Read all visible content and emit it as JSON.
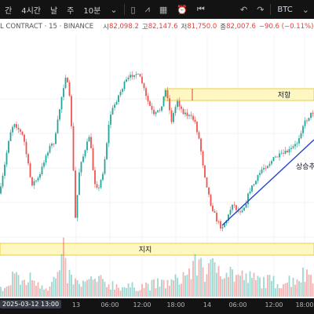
{
  "toolbar": {
    "interval_label": "4시간",
    "intervals": [
      "날",
      "주",
      "10분"
    ],
    "symbol": "BTC",
    "icons": [
      "chevron-down-icon",
      "candles-icon",
      "indicators-icon",
      "layout-icon",
      "alert-icon",
      "replay-icon",
      "undo-icon",
      "redo-icon"
    ]
  },
  "legend": {
    "symbol_text": "L CONTRACT · 15 · BINANCE",
    "open_label": "시",
    "open_value": "82,098.2",
    "high_label": "고",
    "high_value": "82,147.6",
    "low_label": "저",
    "low_value": "81,750.0",
    "close_label": "종",
    "close_value": "82,007.6",
    "change": "−90.6 (−0.11%)"
  },
  "footer": {
    "cursor_label": "2025-03-12  13:00",
    "time_ticks": [
      "13",
      "06:00",
      "12:00",
      "18:00",
      "14",
      "06:00",
      "12:00",
      "18:00"
    ]
  },
  "chart_data": {
    "type": "candlestick",
    "annotations": [
      {
        "kind": "zone",
        "label": "저항"
      },
      {
        "kind": "zone",
        "label": "지지"
      },
      {
        "kind": "trendline",
        "label": "상승추"
      }
    ],
    "price_path": [
      [
        0,
        0.78
      ],
      [
        6,
        0.6
      ],
      [
        12,
        0.4
      ],
      [
        18,
        0.32
      ],
      [
        24,
        0.37
      ],
      [
        30,
        0.42
      ],
      [
        40,
        0.72
      ],
      [
        50,
        0.68
      ],
      [
        56,
        0.57
      ],
      [
        62,
        0.49
      ],
      [
        70,
        0.44
      ],
      [
        74,
        0.3
      ],
      [
        78,
        0.17
      ],
      [
        84,
        0.01
      ],
      [
        90,
        0.22
      ],
      [
        96,
        0.94
      ],
      [
        102,
        0.58
      ],
      [
        108,
        0.52
      ],
      [
        114,
        0.4
      ],
      [
        120,
        0.7
      ],
      [
        126,
        0.75
      ],
      [
        132,
        0.62
      ],
      [
        140,
        0.28
      ],
      [
        150,
        0.16
      ],
      [
        160,
        0.06
      ],
      [
        172,
        0.0
      ],
      [
        180,
        0.05
      ],
      [
        186,
        0.16
      ],
      [
        196,
        0.28
      ],
      [
        204,
        0.24
      ],
      [
        212,
        0.1
      ],
      [
        218,
        0.32
      ],
      [
        226,
        0.18
      ],
      [
        232,
        0.25
      ],
      [
        240,
        0.28
      ],
      [
        248,
        0.31
      ],
      [
        254,
        0.44
      ],
      [
        260,
        0.64
      ],
      [
        268,
        0.84
      ],
      [
        276,
        0.95
      ],
      [
        282,
        1.0
      ],
      [
        290,
        0.94
      ],
      [
        296,
        0.84
      ],
      [
        304,
        0.9
      ],
      [
        312,
        0.86
      ],
      [
        318,
        0.76
      ],
      [
        326,
        0.7
      ],
      [
        334,
        0.62
      ],
      [
        342,
        0.59
      ],
      [
        350,
        0.55
      ],
      [
        360,
        0.53
      ],
      [
        370,
        0.5
      ],
      [
        378,
        0.46
      ],
      [
        386,
        0.34
      ],
      [
        394,
        0.28
      ],
      [
        400,
        0.25
      ]
    ],
    "volume_profile": [
      [
        0,
        0.15
      ],
      [
        14,
        0.25
      ],
      [
        18,
        0.65
      ],
      [
        24,
        0.3
      ],
      [
        42,
        0.4
      ],
      [
        50,
        0.3
      ],
      [
        62,
        0.2
      ],
      [
        78,
        0.55
      ],
      [
        80,
        1.0
      ],
      [
        84,
        0.5
      ],
      [
        100,
        0.25
      ],
      [
        120,
        0.35
      ],
      [
        160,
        0.2
      ],
      [
        220,
        0.3
      ],
      [
        248,
        0.6
      ],
      [
        255,
        0.85
      ],
      [
        262,
        0.5
      ],
      [
        280,
        0.7
      ],
      [
        300,
        0.45
      ],
      [
        330,
        0.35
      ],
      [
        360,
        0.3
      ],
      [
        385,
        0.45
      ],
      [
        400,
        0.55
      ]
    ]
  }
}
